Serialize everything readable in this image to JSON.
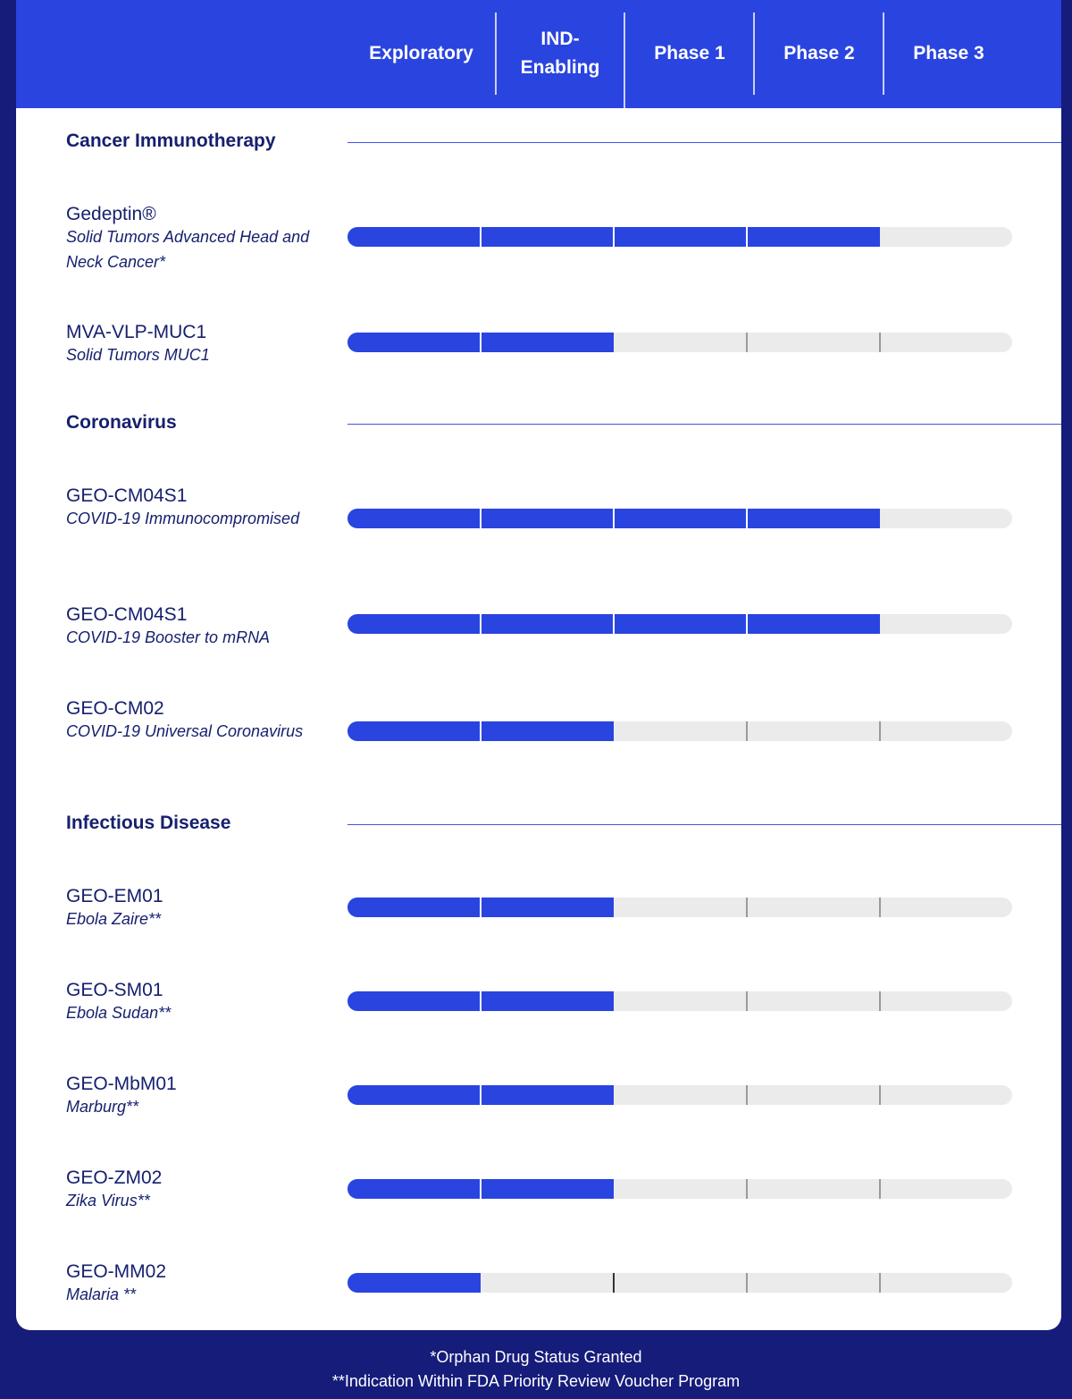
{
  "header": {
    "columns": [
      "Exploratory",
      "IND-\nEnabling",
      "Phase 1",
      "Phase 2",
      "Phase 3"
    ]
  },
  "colors": {
    "header_blue": "#2a44e0",
    "background_navy": "#161c7a",
    "progress_fill": "#2a44e0",
    "progress_track": "#ebebeb",
    "text_navy": "#16206e"
  },
  "sections": [
    {
      "title": "Cancer Immunotherapy",
      "programs": [
        {
          "name": "Gedeptin®",
          "indication": "Solid Tumors Advanced Head and Neck Cancer*",
          "stages_completed": 4
        },
        {
          "name": "MVA-VLP-MUC1",
          "indication": "Solid Tumors MUC1",
          "stages_completed": 2
        }
      ]
    },
    {
      "title": "Coronavirus",
      "programs": [
        {
          "name": "GEO-CM04S1",
          "indication": "COVID-19 Immunocompromised",
          "stages_completed": 4
        },
        {
          "name": "GEO-CM04S1",
          "indication": "COVID-19 Booster to mRNA",
          "stages_completed": 4
        },
        {
          "name": "GEO-CM02",
          "indication": "COVID-19 Universal Coronavirus",
          "stages_completed": 2
        }
      ]
    },
    {
      "title": "Infectious Disease",
      "programs": [
        {
          "name": "GEO-EM01",
          "indication": "Ebola Zaire**",
          "stages_completed": 2
        },
        {
          "name": "GEO-SM01",
          "indication": "Ebola Sudan**",
          "stages_completed": 2
        },
        {
          "name": "GEO-MbM01",
          "indication": "Marburg**",
          "stages_completed": 2
        },
        {
          "name": "GEO-ZM02",
          "indication": "Zika Virus**",
          "stages_completed": 2
        },
        {
          "name": "GEO-MM02",
          "indication": "Malaria **",
          "stages_completed": 1
        }
      ]
    }
  ],
  "footer": {
    "note1": "*Orphan Drug Status Granted",
    "note2": "**Indication Within FDA Priority Review Voucher Program"
  }
}
